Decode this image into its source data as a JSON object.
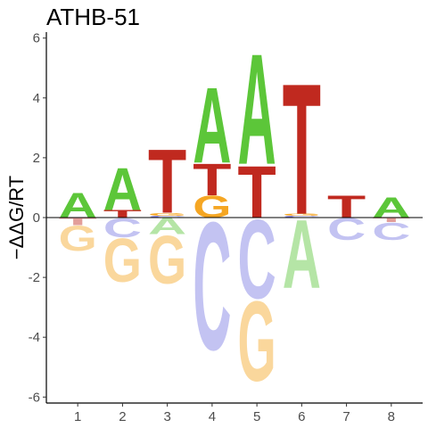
{
  "chart_data": {
    "type": "sequence-logo",
    "title": "ATHB-51",
    "ylabel": "−ΔΔG/RT",
    "xlabel": "",
    "ylim": [
      -6.2,
      6.2
    ],
    "yticks": [
      -6,
      -4,
      -2,
      0,
      2,
      4,
      6
    ],
    "positions": [
      1,
      2,
      3,
      4,
      5,
      6,
      7,
      8
    ],
    "colors": {
      "A": "#5cc639",
      "C": "#7b7be3",
      "G": "#f5a623",
      "T": "#c0291f"
    },
    "columns": [
      {
        "pos": 1,
        "letters": [
          {
            "base": "A",
            "height": 0.85
          },
          {
            "base": "T",
            "height": -0.25
          },
          {
            "base": "G",
            "height": -0.85
          }
        ]
      },
      {
        "pos": 2,
        "letters": [
          {
            "base": "T",
            "height": 0.25
          },
          {
            "base": "A",
            "height": 1.45
          },
          {
            "base": "C",
            "height": -0.65
          },
          {
            "base": "G",
            "height": -1.5
          }
        ]
      },
      {
        "pos": 3,
        "letters": [
          {
            "base": "C",
            "height": 0.06
          },
          {
            "base": "G",
            "height": 0.1
          },
          {
            "base": "T",
            "height": 2.2
          },
          {
            "base": "A",
            "height": -0.55
          },
          {
            "base": "G",
            "height": -1.65
          }
        ]
      },
      {
        "pos": 4,
        "letters": [
          {
            "base": "G",
            "height": 0.75
          },
          {
            "base": "T",
            "height": 1.1
          },
          {
            "base": "A",
            "height": 2.6
          },
          {
            "base": "C",
            "height": -4.4
          }
        ]
      },
      {
        "pos": 5,
        "letters": [
          {
            "base": "T",
            "height": 1.8
          },
          {
            "base": "A",
            "height": 3.8
          },
          {
            "base": "C",
            "height": -2.7
          },
          {
            "base": "G",
            "height": -2.75
          }
        ]
      },
      {
        "pos": 6,
        "letters": [
          {
            "base": "C",
            "height": 0.06
          },
          {
            "base": "G",
            "height": 0.07
          },
          {
            "base": "T",
            "height": 4.5
          },
          {
            "base": "A",
            "height": -2.35
          }
        ]
      },
      {
        "pos": 7,
        "letters": [
          {
            "base": "T",
            "height": 0.75
          },
          {
            "base": "C",
            "height": -0.75
          }
        ]
      },
      {
        "pos": 8,
        "letters": [
          {
            "base": "A",
            "height": 0.7
          },
          {
            "base": "T",
            "height": -0.15
          },
          {
            "base": "C",
            "height": -0.6
          }
        ]
      }
    ]
  }
}
